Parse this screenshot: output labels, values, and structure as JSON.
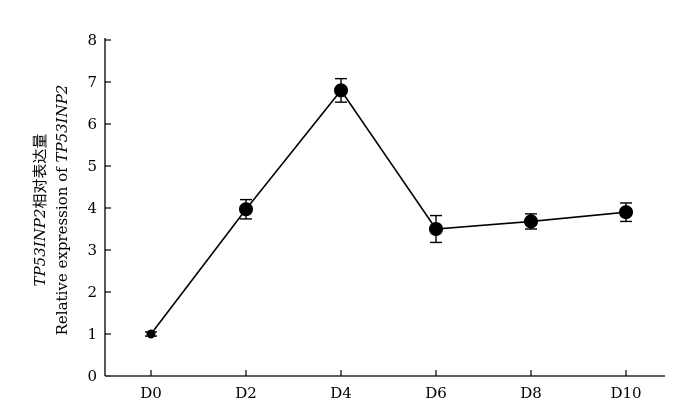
{
  "chart_data": {
    "type": "line",
    "categories": [
      "D0",
      "D2",
      "D4",
      "D6",
      "D8",
      "D10"
    ],
    "series": [
      {
        "values": [
          1.0,
          3.97,
          6.8,
          3.5,
          3.68,
          3.9
        ],
        "error": [
          0.05,
          0.23,
          0.28,
          0.32,
          0.18,
          0.22
        ]
      }
    ],
    "ylabel_line1_gene": "TP53INP2",
    "ylabel_line1_text": "相对表达量",
    "ylabel_line2_text": "Relative expression of ",
    "ylabel_line2_gene": "TP53INP2",
    "ylim": [
      0,
      8
    ],
    "yticks": [
      0,
      1,
      2,
      3,
      4,
      5,
      6,
      7,
      8
    ],
    "yticklabels": [
      "0",
      "1",
      "2",
      "3",
      "4",
      "5",
      "6",
      "7",
      "8"
    ],
    "grid": false,
    "legend": "none",
    "line_color": "#000000",
    "marker_color": "#000000"
  }
}
